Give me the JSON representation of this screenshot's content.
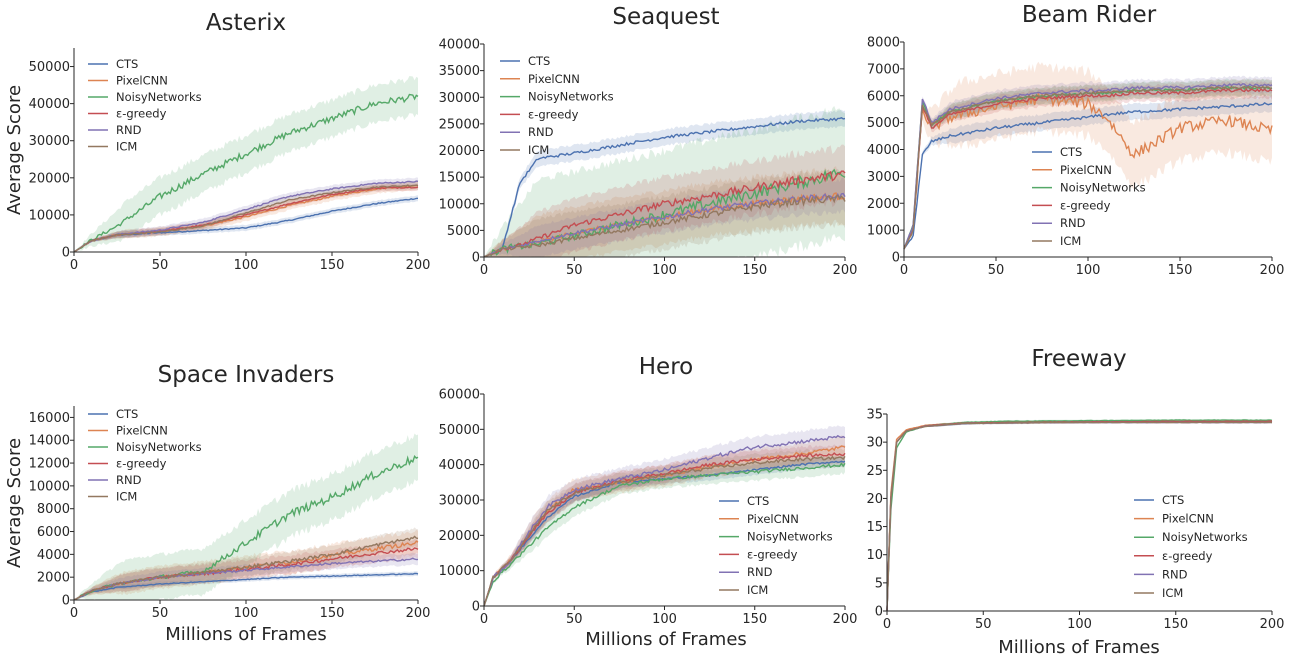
{
  "colors": {
    "CTS": "#4c72b0",
    "PixelCNN": "#dd8452",
    "NoisyNetworks": "#55a868",
    "ε-greedy": "#c44e52",
    "RND": "#8172b3",
    "ICM": "#937860"
  },
  "chart_data": [
    {
      "type": "line",
      "title": "Asterix",
      "xlabel": "",
      "ylabel": "Average Score",
      "xlim": [
        0,
        200
      ],
      "ylim": [
        0,
        55000
      ],
      "xticks": [
        0,
        50,
        100,
        150,
        200
      ],
      "yticks": [
        0,
        10000,
        20000,
        30000,
        40000,
        50000
      ],
      "legend_loc": "top-left",
      "x": [
        0,
        10,
        25,
        50,
        75,
        100,
        125,
        150,
        175,
        200
      ],
      "series": [
        {
          "name": "CTS",
          "values": [
            0,
            3000,
            4500,
            5200,
            5800,
            6500,
            8500,
            11000,
            13000,
            14500
          ],
          "spread": 800
        },
        {
          "name": "PixelCNN",
          "values": [
            0,
            3000,
            4600,
            5500,
            7000,
            9500,
            12500,
            15000,
            17000,
            18000
          ],
          "spread": 1200
        },
        {
          "name": "NoisyNetworks",
          "values": [
            0,
            3200,
            7000,
            15000,
            21000,
            26500,
            32000,
            36000,
            40000,
            42000
          ],
          "spread": 5000
        },
        {
          "name": "ε-greedy",
          "values": [
            0,
            3000,
            4600,
            5600,
            7200,
            10000,
            13000,
            15500,
            17200,
            17500
          ],
          "spread": 900
        },
        {
          "name": "RND",
          "values": [
            0,
            3000,
            4700,
            5900,
            8000,
            11500,
            15000,
            17000,
            18500,
            19000
          ],
          "spread": 1000
        },
        {
          "name": "ICM",
          "values": [
            0,
            3000,
            4600,
            5400,
            7000,
            10500,
            14000,
            16000,
            17500,
            18000
          ],
          "spread": 1000
        }
      ]
    },
    {
      "type": "line",
      "title": "Seaquest",
      "xlabel": "",
      "ylabel": "",
      "xlim": [
        0,
        200
      ],
      "ylim": [
        0,
        40000
      ],
      "xticks": [
        0,
        50,
        100,
        150,
        200
      ],
      "yticks": [
        0,
        5000,
        10000,
        15000,
        20000,
        25000,
        30000,
        35000,
        40000
      ],
      "legend_loc": "top-left",
      "x": [
        0,
        10,
        20,
        30,
        50,
        75,
        100,
        125,
        150,
        175,
        200
      ],
      "series": [
        {
          "name": "CTS",
          "values": [
            0,
            1500,
            14000,
            18500,
            19500,
            21000,
            22500,
            23500,
            24500,
            25500,
            26000
          ],
          "spread": 1500
        },
        {
          "name": "PixelCNN",
          "values": [
            0,
            1500,
            2000,
            2800,
            4500,
            6000,
            7500,
            9000,
            10000,
            11000,
            11500
          ],
          "spread": 5000
        },
        {
          "name": "NoisyNetworks",
          "values": [
            0,
            1500,
            2000,
            2500,
            4000,
            6000,
            8000,
            10000,
            12000,
            14000,
            16000
          ],
          "spread": 12000
        },
        {
          "name": "ε-greedy",
          "values": [
            0,
            1500,
            2200,
            3500,
            6000,
            8000,
            10000,
            11500,
            13000,
            14500,
            15500
          ],
          "spread": 5000
        },
        {
          "name": "RND",
          "values": [
            0,
            1500,
            2100,
            3000,
            4500,
            6000,
            7500,
            9000,
            10000,
            11000,
            11500
          ],
          "spread": 3000
        },
        {
          "name": "ICM",
          "values": [
            0,
            1500,
            1800,
            2200,
            3500,
            5000,
            6500,
            8000,
            9500,
            10500,
            11000
          ],
          "spread": 5000
        }
      ]
    },
    {
      "type": "line",
      "title": "Beam Rider",
      "xlabel": "",
      "ylabel": "",
      "xlim": [
        0,
        200
      ],
      "ylim": [
        0,
        8000
      ],
      "xticks": [
        0,
        50,
        100,
        150,
        200
      ],
      "yticks": [
        0,
        1000,
        2000,
        3000,
        4000,
        5000,
        6000,
        7000,
        8000
      ],
      "legend_loc": "center-left",
      "x": [
        0,
        5,
        10,
        15,
        25,
        50,
        75,
        100,
        110,
        125,
        150,
        175,
        200
      ],
      "series": [
        {
          "name": "CTS",
          "values": [
            300,
            800,
            3800,
            4300,
            4500,
            4800,
            5000,
            5200,
            5300,
            5400,
            5500,
            5600,
            5700
          ],
          "spread": 300
        },
        {
          "name": "PixelCNN",
          "values": [
            300,
            1000,
            5500,
            4800,
            5200,
            5600,
            5900,
            5700,
            5200,
            3800,
            4800,
            5100,
            4700
          ],
          "spread": 1200
        },
        {
          "name": "NoisyNetworks",
          "values": [
            300,
            1200,
            5800,
            4900,
            5400,
            5800,
            6000,
            6100,
            6100,
            6200,
            6200,
            6300,
            6300
          ],
          "spread": 300
        },
        {
          "name": "ε-greedy",
          "values": [
            300,
            1100,
            5600,
            4800,
            5300,
            5700,
            5900,
            6000,
            6000,
            6100,
            6100,
            6200,
            6200
          ],
          "spread": 300
        },
        {
          "name": "RND",
          "values": [
            300,
            1200,
            5900,
            5000,
            5500,
            5900,
            6100,
            6200,
            6200,
            6300,
            6300,
            6400,
            6400
          ],
          "spread": 300
        },
        {
          "name": "ICM",
          "values": [
            300,
            1000,
            5700,
            4900,
            5400,
            5800,
            6000,
            6100,
            6100,
            6200,
            6200,
            6300,
            6300
          ],
          "spread": 300
        }
      ]
    },
    {
      "type": "line",
      "title": "Space Invaders",
      "xlabel": "Millions of Frames",
      "ylabel": "Average Score",
      "xlim": [
        0,
        200
      ],
      "ylim": [
        0,
        17000
      ],
      "xticks": [
        0,
        50,
        100,
        150,
        200
      ],
      "yticks": [
        0,
        2000,
        4000,
        6000,
        8000,
        10000,
        12000,
        14000,
        16000
      ],
      "legend_loc": "top-left",
      "x": [
        0,
        10,
        25,
        50,
        75,
        100,
        125,
        150,
        175,
        200
      ],
      "series": [
        {
          "name": "CTS",
          "values": [
            0,
            700,
            1100,
            1400,
            1600,
            1800,
            2000,
            2100,
            2200,
            2300
          ],
          "spread": 200
        },
        {
          "name": "PixelCNN",
          "values": [
            0,
            800,
            1400,
            2000,
            2400,
            2900,
            3300,
            3900,
            4500,
            5000
          ],
          "spread": 1000
        },
        {
          "name": "NoisyNetworks",
          "values": [
            0,
            800,
            1400,
            2000,
            2500,
            5000,
            7500,
            9000,
            11000,
            12500
          ],
          "spread": 2000
        },
        {
          "name": "ε-greedy",
          "values": [
            0,
            800,
            1400,
            2000,
            2300,
            2700,
            3100,
            3600,
            4100,
            4500
          ],
          "spread": 800
        },
        {
          "name": "RND",
          "values": [
            0,
            800,
            1400,
            2000,
            2300,
            2600,
            2900,
            3200,
            3400,
            3600
          ],
          "spread": 500
        },
        {
          "name": "ICM",
          "values": [
            0,
            800,
            1400,
            2000,
            2400,
            2900,
            3400,
            4000,
            4800,
            5500
          ],
          "spread": 800
        }
      ]
    },
    {
      "type": "line",
      "title": "Hero",
      "xlabel": "Millions of Frames",
      "ylabel": "",
      "xlim": [
        0,
        200
      ],
      "ylim": [
        0,
        60000
      ],
      "xticks": [
        0,
        50,
        100,
        150,
        200
      ],
      "yticks": [
        0,
        10000,
        20000,
        30000,
        40000,
        50000,
        60000
      ],
      "legend_loc": "lower-right",
      "x": [
        0,
        5,
        15,
        25,
        35,
        50,
        75,
        100,
        125,
        150,
        175,
        200
      ],
      "series": [
        {
          "name": "CTS",
          "values": [
            0,
            8000,
            13000,
            19000,
            25000,
            31000,
            35000,
            36000,
            37000,
            38500,
            40000,
            41000
          ],
          "spread": 1500
        },
        {
          "name": "PixelCNN",
          "values": [
            0,
            8000,
            13000,
            21000,
            27000,
            33000,
            35000,
            37000,
            39500,
            41500,
            43000,
            45000
          ],
          "spread": 3000
        },
        {
          "name": "NoisyNetworks",
          "values": [
            0,
            7000,
            12000,
            17000,
            22000,
            28000,
            34000,
            36000,
            37000,
            38000,
            39000,
            40000
          ],
          "spread": 2500
        },
        {
          "name": "ε-greedy",
          "values": [
            0,
            8000,
            13000,
            20000,
            26000,
            32000,
            35500,
            37500,
            40000,
            41500,
            42500,
            43000
          ],
          "spread": 2500
        },
        {
          "name": "RND",
          "values": [
            0,
            8000,
            13000,
            21000,
            28000,
            33000,
            36000,
            38500,
            42000,
            45000,
            46500,
            48000
          ],
          "spread": 3000
        },
        {
          "name": "ICM",
          "values": [
            0,
            8000,
            13000,
            20000,
            27000,
            32000,
            35000,
            37000,
            39000,
            40500,
            41500,
            42000
          ],
          "spread": 2500
        }
      ]
    },
    {
      "type": "line",
      "title": "Freeway",
      "xlabel": "Millions of Frames",
      "ylabel": "",
      "xlim": [
        0,
        200
      ],
      "ylim": [
        0,
        35
      ],
      "xticks": [
        0,
        50,
        100,
        150,
        200
      ],
      "yticks": [
        0,
        5,
        10,
        15,
        20,
        25,
        30,
        35
      ],
      "legend_loc": "lower-right",
      "x": [
        0,
        2,
        5,
        10,
        20,
        40,
        60,
        100,
        150,
        200
      ],
      "series": [
        {
          "name": "CTS",
          "values": [
            0,
            20,
            30,
            32,
            32.8,
            33.3,
            33.5,
            33.6,
            33.6,
            33.6
          ],
          "spread": 0.2
        },
        {
          "name": "PixelCNN",
          "values": [
            0,
            21,
            30.5,
            32.2,
            33,
            33.4,
            33.5,
            33.6,
            33.6,
            33.6
          ],
          "spread": 0.2
        },
        {
          "name": "NoisyNetworks",
          "values": [
            0,
            18,
            29,
            31.8,
            32.9,
            33.5,
            33.7,
            33.8,
            33.9,
            33.9
          ],
          "spread": 0.2
        },
        {
          "name": "ε-greedy",
          "values": [
            0,
            20,
            30,
            32,
            32.9,
            33.4,
            33.5,
            33.6,
            33.7,
            33.7
          ],
          "spread": 0.2
        },
        {
          "name": "RND",
          "values": [
            0,
            20,
            30,
            32,
            32.8,
            33.3,
            33.4,
            33.5,
            33.5,
            33.5
          ],
          "spread": 0.2
        },
        {
          "name": "ICM",
          "values": [
            0,
            20,
            30,
            32,
            32.8,
            33.3,
            33.4,
            33.5,
            33.5,
            33.5
          ],
          "spread": 0.2
        }
      ]
    }
  ]
}
